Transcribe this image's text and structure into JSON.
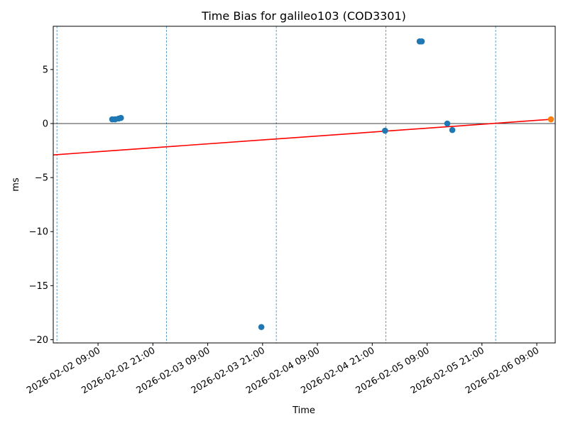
{
  "chart_data": {
    "type": "scatter",
    "title": "Time Bias for galileo103 (COD3301)",
    "xlabel": "Time",
    "ylabel": "ms",
    "xlim": [
      "2026-02-01T23:12",
      "2026-02-06T13:02"
    ],
    "ylim": [
      -20.3,
      9.0
    ],
    "yticks": [
      {
        "value": -20,
        "label": "−20"
      },
      {
        "value": -15,
        "label": "−15"
      },
      {
        "value": -10,
        "label": "−10"
      },
      {
        "value": -5,
        "label": "−5"
      },
      0,
      5
    ],
    "xticks": [
      {
        "value": "2026-02-02T09:00",
        "label": "2026-02-02 09:00"
      },
      {
        "value": "2026-02-02T21:00",
        "label": "2026-02-02 21:00"
      },
      {
        "value": "2026-02-03T09:00",
        "label": "2026-02-03 09:00"
      },
      {
        "value": "2026-02-03T21:00",
        "label": "2026-02-03 21:00"
      },
      {
        "value": "2026-02-04T09:00",
        "label": "2026-02-04 09:00"
      },
      {
        "value": "2026-02-04T21:00",
        "label": "2026-02-04 21:00"
      },
      {
        "value": "2026-02-05T09:00",
        "label": "2026-02-05 09:00"
      },
      {
        "value": "2026-02-05T21:00",
        "label": "2026-02-05 21:00"
      },
      {
        "value": "2026-02-06T09:00",
        "label": "2026-02-06 09:00"
      }
    ],
    "series": [
      {
        "color": "#1f77b4",
        "x": [
          "2026-02-02T12:06",
          "2026-02-02T12:44",
          "2026-02-02T13:30",
          "2026-02-02T14:00",
          "2026-02-03T20:44",
          "2026-02-04T23:48",
          "2026-02-05T07:22",
          "2026-02-05T07:50",
          "2026-02-05T13:25",
          "2026-02-05T14:31"
        ],
        "values": [
          0.39,
          0.39,
          0.46,
          0.52,
          -18.83,
          -0.66,
          7.6,
          7.6,
          0.0,
          -0.6
        ]
      },
      {
        "color": "#ff7f0e",
        "x": [
          "2026-02-06T12:06"
        ],
        "values": [
          0.39
        ]
      }
    ],
    "regression": {
      "color": "#ff0000",
      "x": [
        "2026-02-01T23:15",
        "2026-02-06T12:06"
      ],
      "values": [
        -2.9,
        0.39
      ]
    },
    "hline": 0,
    "vlines": [
      "2026-02-02T00:00",
      "2026-02-03T00:00",
      "2026-02-04T00:00",
      "2026-02-05T00:00",
      "2026-02-06T00:00"
    ]
  }
}
